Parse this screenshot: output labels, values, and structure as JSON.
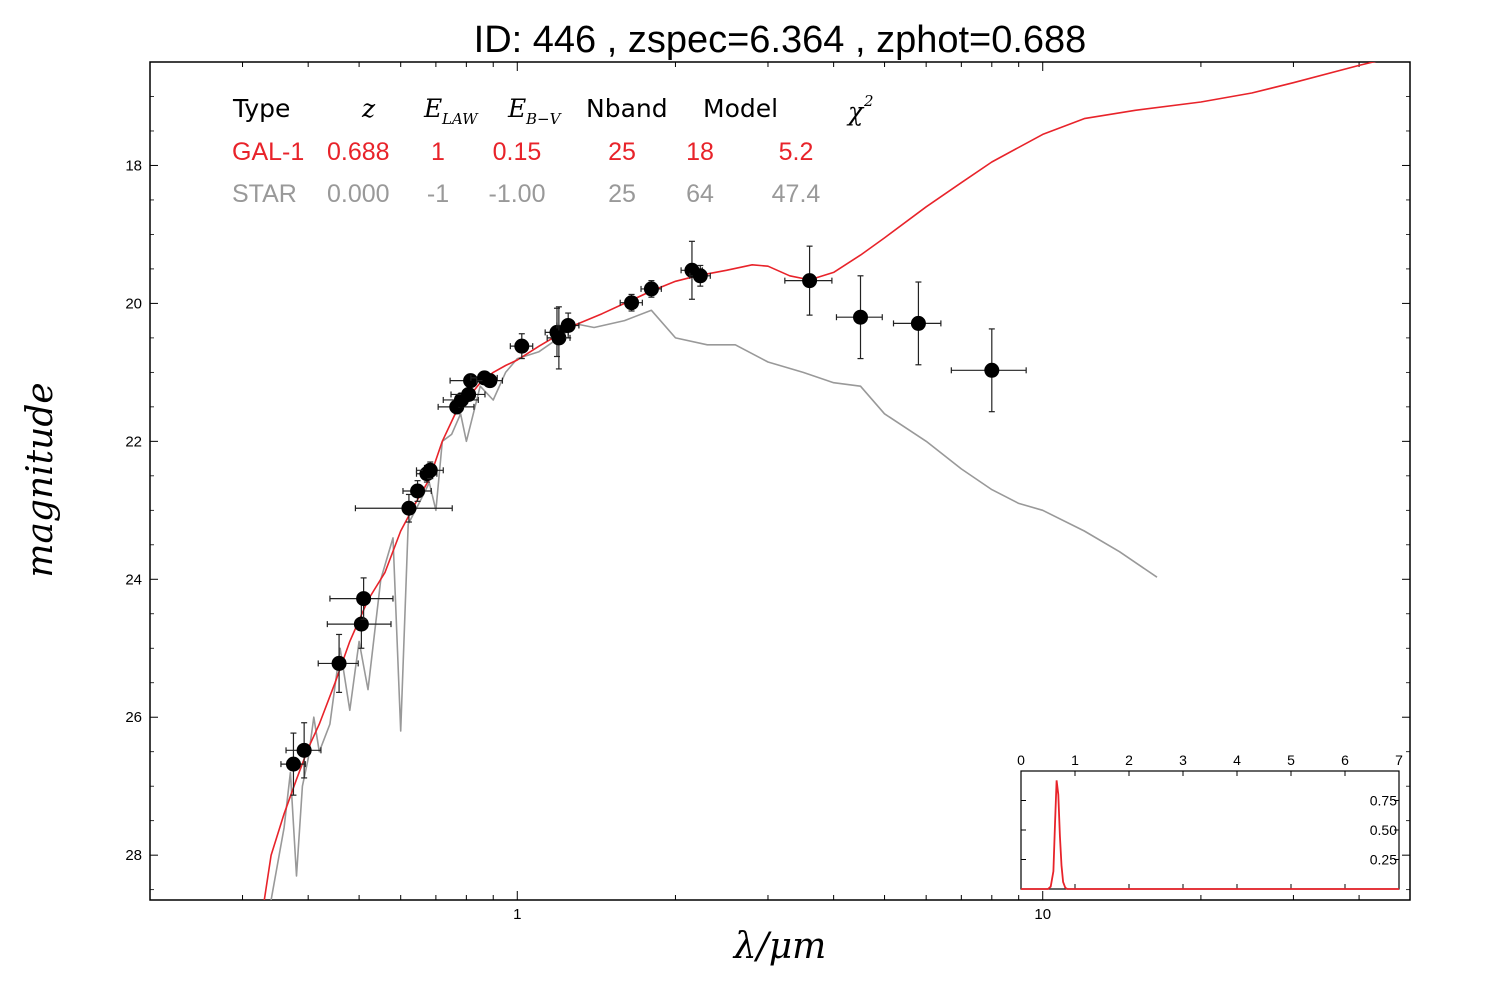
{
  "title": "ID:  446   , zspec=6.364 , zphot=0.688",
  "chart_data": {
    "type": "scatter",
    "title": "ID:  446   , zspec=6.364 , zphot=0.688",
    "xlabel": "λ/μm",
    "ylabel": "magnitude",
    "x_scale": "log",
    "xlim": [
      0.2,
      50
    ],
    "ylim": [
      28.65,
      16.5
    ],
    "y_inverted": true,
    "y_ticks": [
      18,
      20,
      22,
      24,
      26,
      28
    ],
    "x_tick_labels": [
      {
        "value": 1,
        "label": "1"
      },
      {
        "value": 10,
        "label": "10"
      }
    ],
    "grid": false,
    "colors": {
      "galaxy": "#e8232a",
      "star": "#999999",
      "points": "#000000"
    },
    "table": {
      "headers": [
        "Type",
        "z",
        "E_LAW",
        "E_B-V",
        "Nband",
        "Model",
        "χ2"
      ],
      "rows": [
        {
          "name": "GAL-1",
          "color": "#e8232a",
          "values": [
            "GAL-1",
            "0.688",
            "1",
            "0.15",
            "25",
            "18",
            "5.2"
          ]
        },
        {
          "name": "STAR",
          "color": "#999999",
          "values": [
            "STAR",
            "0.000",
            "-1",
            "-1.00",
            "25",
            "64",
            "47.4"
          ]
        }
      ]
    },
    "photometry": [
      {
        "x": 0.375,
        "y": 26.68,
        "xerr": 0.02,
        "yerr": 0.45
      },
      {
        "x": 0.393,
        "y": 26.48,
        "xerr": 0.03,
        "yerr": 0.4
      },
      {
        "x": 0.458,
        "y": 25.22,
        "xerr": 0.04,
        "yerr": 0.42
      },
      {
        "x": 0.505,
        "y": 24.65,
        "xerr": 0.07,
        "yerr": 0.35
      },
      {
        "x": 0.51,
        "y": 24.28,
        "xerr": 0.07,
        "yerr": 0.3
      },
      {
        "x": 0.622,
        "y": 22.97,
        "xerr": 0.13,
        "yerr": 0.2
      },
      {
        "x": 0.646,
        "y": 22.72,
        "xerr": 0.04,
        "yerr": 0.15
      },
      {
        "x": 0.673,
        "y": 22.47,
        "xerr": 0.03,
        "yerr": 0.12
      },
      {
        "x": 0.683,
        "y": 22.42,
        "xerr": 0.04,
        "yerr": 0.12
      },
      {
        "x": 0.767,
        "y": 21.5,
        "xerr": 0.06,
        "yerr": 0.1
      },
      {
        "x": 0.783,
        "y": 21.4,
        "xerr": 0.06,
        "yerr": 0.1
      },
      {
        "x": 0.808,
        "y": 21.32,
        "xerr": 0.06,
        "yerr": 0.08
      },
      {
        "x": 0.815,
        "y": 21.12,
        "xerr": 0.07,
        "yerr": 0.08
      },
      {
        "x": 0.866,
        "y": 21.08,
        "xerr": 0.05,
        "yerr": 0.08
      },
      {
        "x": 0.887,
        "y": 21.12,
        "xerr": 0.05,
        "yerr": 0.08
      },
      {
        "x": 1.02,
        "y": 20.62,
        "xerr": 0.05,
        "yerr": 0.18
      },
      {
        "x": 1.19,
        "y": 20.42,
        "xerr": 0.06,
        "yerr": 0.35
      },
      {
        "x": 1.2,
        "y": 20.5,
        "xerr": 0.06,
        "yerr": 0.45
      },
      {
        "x": 1.25,
        "y": 20.32,
        "xerr": 0.06,
        "yerr": 0.18
      },
      {
        "x": 1.65,
        "y": 19.99,
        "xerr": 0.08,
        "yerr": 0.12
      },
      {
        "x": 1.8,
        "y": 19.79,
        "xerr": 0.08,
        "yerr": 0.12
      },
      {
        "x": 2.15,
        "y": 19.52,
        "xerr": 0.1,
        "yerr": 0.42
      },
      {
        "x": 2.23,
        "y": 19.6,
        "xerr": 0.1,
        "yerr": 0.15
      },
      {
        "x": 3.6,
        "y": 19.67,
        "xerr": 0.37,
        "yerr": 0.5
      },
      {
        "x": 4.5,
        "y": 20.2,
        "xerr": 0.45,
        "yerr": 0.6
      },
      {
        "x": 5.8,
        "y": 20.29,
        "xerr": 0.6,
        "yerr": 0.6
      },
      {
        "x": 8.0,
        "y": 20.97,
        "xerr": 1.3,
        "yerr": 0.6
      }
    ],
    "series": [
      {
        "name": "GAL-1",
        "color": "#e8232a",
        "x": [
          0.33,
          0.34,
          0.36,
          0.38,
          0.4,
          0.42,
          0.45,
          0.48,
          0.52,
          0.56,
          0.6,
          0.64,
          0.68,
          0.72,
          0.76,
          0.8,
          0.85,
          0.9,
          0.95,
          1.0,
          1.1,
          1.2,
          1.3,
          1.45,
          1.6,
          1.8,
          2.0,
          2.2,
          2.5,
          2.8,
          3.0,
          3.3,
          3.6,
          4.0,
          4.5,
          5.0,
          6.0,
          7.0,
          8.0,
          10.0,
          12.0,
          15.0,
          20.0,
          25.0,
          30.0,
          40.0,
          50.0
        ],
        "y": [
          28.65,
          28.0,
          27.4,
          26.9,
          26.45,
          26.1,
          25.5,
          24.9,
          24.3,
          23.9,
          23.3,
          22.9,
          22.55,
          22.0,
          21.62,
          21.4,
          21.15,
          21.0,
          20.9,
          20.82,
          20.62,
          20.45,
          20.3,
          20.15,
          20.0,
          19.82,
          19.68,
          19.6,
          19.52,
          19.44,
          19.46,
          19.6,
          19.66,
          19.55,
          19.3,
          19.05,
          18.6,
          18.25,
          17.95,
          17.55,
          17.32,
          17.2,
          17.08,
          16.95,
          16.8,
          16.55,
          16.37
        ]
      },
      {
        "name": "STAR",
        "color": "#999999",
        "x": [
          0.34,
          0.36,
          0.37,
          0.38,
          0.39,
          0.4,
          0.41,
          0.42,
          0.44,
          0.46,
          0.48,
          0.5,
          0.52,
          0.55,
          0.58,
          0.6,
          0.62,
          0.65,
          0.68,
          0.7,
          0.72,
          0.75,
          0.78,
          0.8,
          0.85,
          0.9,
          0.95,
          1.0,
          1.1,
          1.2,
          1.3,
          1.4,
          1.6,
          1.8,
          2.0,
          2.3,
          2.6,
          3.0,
          3.5,
          4.0,
          4.5,
          5.0,
          6.0,
          7.0,
          8.0,
          9.0,
          10.0,
          12.0,
          14.0,
          16.5
        ],
        "y": [
          28.65,
          27.6,
          26.8,
          28.3,
          27.0,
          26.6,
          26.0,
          26.5,
          26.1,
          25.0,
          25.9,
          24.9,
          25.6,
          24.0,
          23.4,
          26.2,
          23.2,
          22.9,
          22.6,
          23.0,
          22.0,
          21.9,
          21.6,
          22.0,
          21.2,
          21.4,
          21.0,
          20.8,
          20.7,
          20.5,
          20.3,
          20.35,
          20.25,
          20.1,
          20.5,
          20.6,
          20.6,
          20.85,
          21.0,
          21.15,
          21.2,
          21.6,
          22.0,
          22.4,
          22.7,
          22.9,
          23.0,
          23.3,
          23.6,
          23.97
        ]
      }
    ],
    "inset": {
      "type": "line",
      "xlim": [
        0,
        7
      ],
      "x_ticks": [
        0,
        1,
        2,
        3,
        4,
        5,
        6,
        7
      ],
      "y_ticks": [
        0.25,
        0.5,
        0.75
      ],
      "ylim": [
        0,
        1.0
      ],
      "series": [
        {
          "color": "#e8232a",
          "x": [
            0,
            0.5,
            0.55,
            0.6,
            0.63,
            0.66,
            0.69,
            0.72,
            0.75,
            0.78,
            0.82,
            0.86,
            1.0,
            7.0
          ],
          "y": [
            0,
            0,
            0.02,
            0.15,
            0.55,
            0.92,
            0.8,
            0.45,
            0.2,
            0.06,
            0.01,
            0,
            0,
            0
          ]
        }
      ]
    }
  }
}
